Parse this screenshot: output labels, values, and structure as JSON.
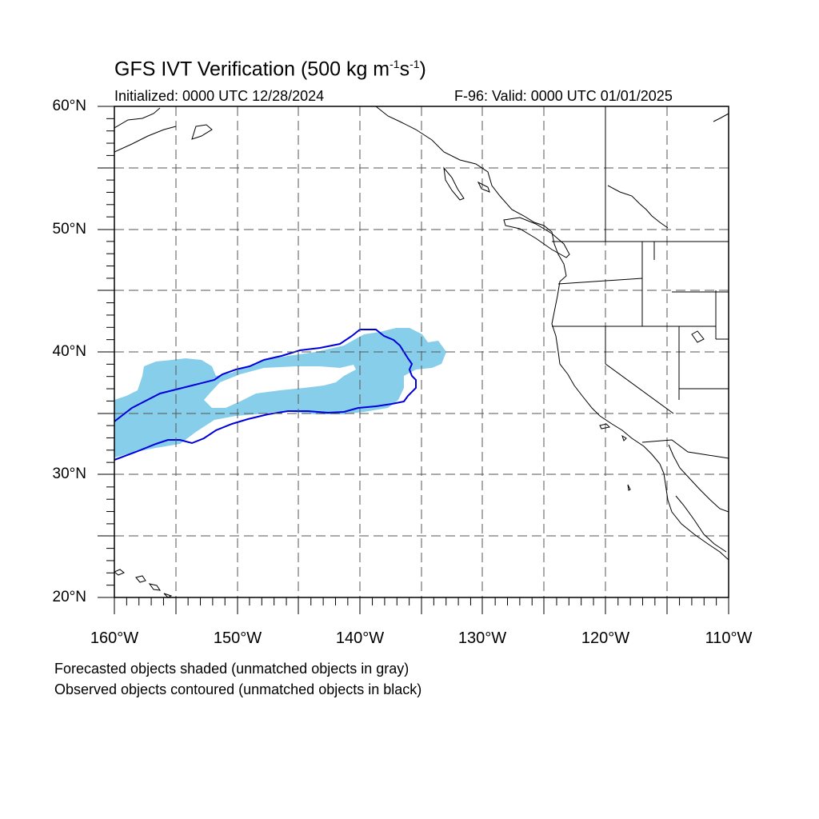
{
  "header": {
    "title_main": "GFS IVT Verification (500 kg m",
    "title_exp1": "-1",
    "title_s": "s",
    "title_exp2": "-1",
    "title_close": ")",
    "initialized": "Initialized: 0000 UTC 12/28/2024",
    "valid": "F-96: Valid: 0000 UTC 01/01/2025"
  },
  "axes": {
    "lat_labels": [
      "60°N",
      "50°N",
      "40°N",
      "30°N",
      "20°N"
    ],
    "lon_labels": [
      "160°W",
      "150°W",
      "140°W",
      "130°W",
      "120°W",
      "110°W"
    ],
    "lat_range": [
      20,
      60
    ],
    "lon_range": [
      -160,
      -110
    ],
    "grid": "dashed, every 5°"
  },
  "legend": {
    "line1": "Forecasted objects shaded (unmatched objects in gray)",
    "line2": "Observed objects contoured (unmatched objects in black)"
  },
  "colors": {
    "forecast_fill": "#87ceeb",
    "observed_contour": "#0000dd",
    "coastline": "#000000",
    "grid": "#555555"
  }
}
